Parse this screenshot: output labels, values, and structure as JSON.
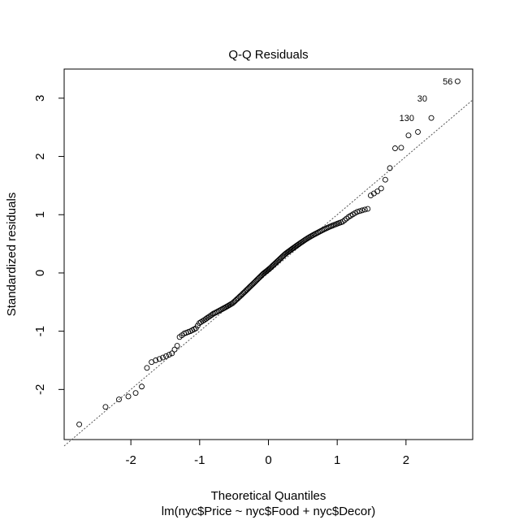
{
  "chart_data": {
    "type": "scatter",
    "title": "Q-Q Residuals",
    "xlabel": "Theoretical Quantiles",
    "subtitle": "lm(nyc$Price ~ nyc$Food + nyc$Decor)",
    "ylabel": "Standardized residuals",
    "xlim": [
      -2.97,
      2.97
    ],
    "ylim": [
      -2.86,
      3.5
    ],
    "xticks": [
      -2,
      -1,
      0,
      1,
      2
    ],
    "yticks": [
      -2,
      -1,
      0,
      1,
      2,
      3
    ],
    "grid": false,
    "reference_line": {
      "slope": 1.0,
      "intercept": 0.0,
      "style": "dotted",
      "color": "#555555"
    },
    "point_labels": [
      {
        "label": "56",
        "x": 2.75,
        "y": 3.29
      },
      {
        "label": "30",
        "x": 2.38,
        "y": 3.0
      },
      {
        "label": "130",
        "x": 2.19,
        "y": 2.66
      }
    ],
    "point_style": "open-circle",
    "n_points": 168
  }
}
